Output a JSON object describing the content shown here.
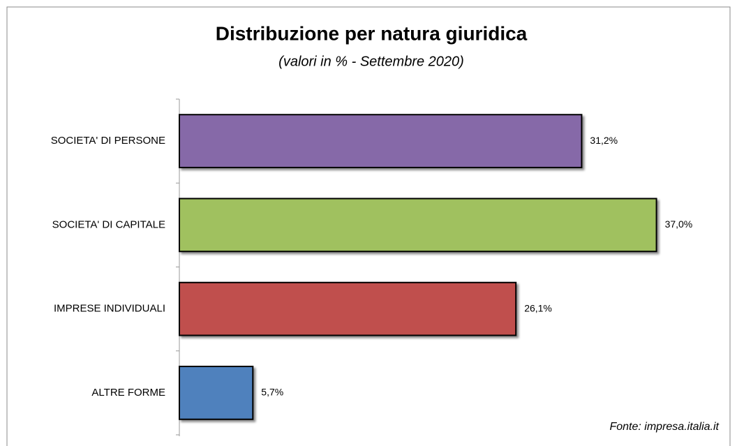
{
  "chart_data": {
    "type": "bar",
    "orientation": "horizontal",
    "title": "Distribuzione per natura giuridica",
    "subtitle": "(valori in % - Settembre 2020)",
    "categories": [
      "SOCIETA' DI PERSONE",
      "SOCIETA' DI CAPITALE",
      "IMPRESE INDIVIDUALI",
      "ALTRE FORME"
    ],
    "values": [
      31.2,
      37.0,
      26.1,
      5.7
    ],
    "value_labels": [
      "31,2%",
      "37,0%",
      "26,1%",
      "5,7%"
    ],
    "colors": [
      "#8669a8",
      "#a0c15e",
      "#c0504d",
      "#4f81bd"
    ],
    "xlim": [
      0,
      40
    ],
    "source": "Fonte: impresa.italia.it"
  }
}
